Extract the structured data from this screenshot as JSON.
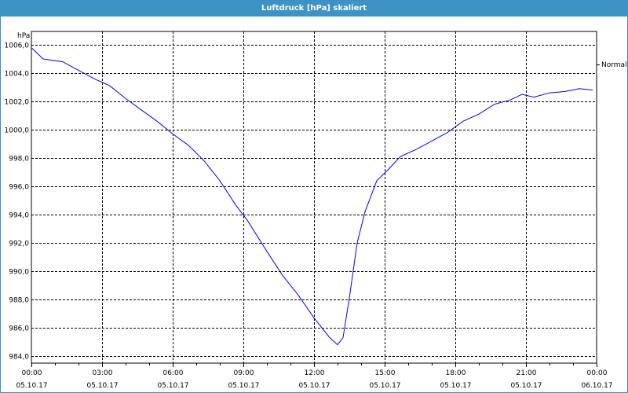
{
  "title": "Luftdruck [hPa] skaliert",
  "chart_data": {
    "type": "line",
    "title": "Luftdruck [hPa] skaliert",
    "ylabel": "hPa",
    "xlabel": "",
    "ylim": [
      984,
      1006
    ],
    "yticks": [
      "1006,0",
      "1004,0",
      "1002,0",
      "1000,0",
      "998,0",
      "996,0",
      "994,0",
      "992,0",
      "990,0",
      "988,0",
      "986,0",
      "984,0"
    ],
    "ytick_values": [
      1006,
      1004,
      1002,
      1000,
      998,
      996,
      994,
      992,
      990,
      988,
      986,
      984
    ],
    "xlim_hours": [
      0,
      24
    ],
    "xticks": [
      {
        "time": "00:00",
        "date": "05.10.17"
      },
      {
        "time": "03:00",
        "date": "05.10.17"
      },
      {
        "time": "06:00",
        "date": "05.10.17"
      },
      {
        "time": "09:00",
        "date": "05.10.17"
      },
      {
        "time": "12:00",
        "date": "05.10.17"
      },
      {
        "time": "15:00",
        "date": "05.10.17"
      },
      {
        "time": "18:00",
        "date": "05.10.17"
      },
      {
        "time": "21:00",
        "date": "05.10.17"
      },
      {
        "time": "00:00",
        "date": "06.10.17"
      }
    ],
    "grid": true,
    "legend_position": "right",
    "series": [
      {
        "name": "Normal",
        "color": "#0000ff",
        "x": [
          "00:00",
          "00:30",
          "01:20",
          "02:00",
          "02:40",
          "03:20",
          "04:00",
          "04:40",
          "05:20",
          "06:00",
          "06:40",
          "07:20",
          "08:00",
          "08:40",
          "09:10",
          "10:00",
          "10:40",
          "11:20",
          "12:00",
          "12:40",
          "13:00",
          "13:14",
          "13:30",
          "13:50",
          "14:10",
          "14:40",
          "15:10",
          "15:40",
          "16:20",
          "17:00",
          "17:40",
          "18:20",
          "19:00",
          "19:40",
          "20:20",
          "20:50",
          "21:20",
          "22:00",
          "22:40",
          "23:16",
          "23:50"
        ],
        "values": [
          1005.8,
          1005.0,
          1004.8,
          1004.2,
          1003.6,
          1003.1,
          1002.2,
          1001.4,
          1000.6,
          999.7,
          998.9,
          997.8,
          996.4,
          994.7,
          993.6,
          991.4,
          989.7,
          988.3,
          986.7,
          985.3,
          984.8,
          985.3,
          988.1,
          992.0,
          994.2,
          996.4,
          997.2,
          998.1,
          998.6,
          999.2,
          999.8,
          1000.6,
          1001.1,
          1001.8,
          1002.1,
          1002.5,
          1002.3,
          1002.6,
          1002.7,
          1002.9,
          1002.8
        ]
      }
    ]
  }
}
